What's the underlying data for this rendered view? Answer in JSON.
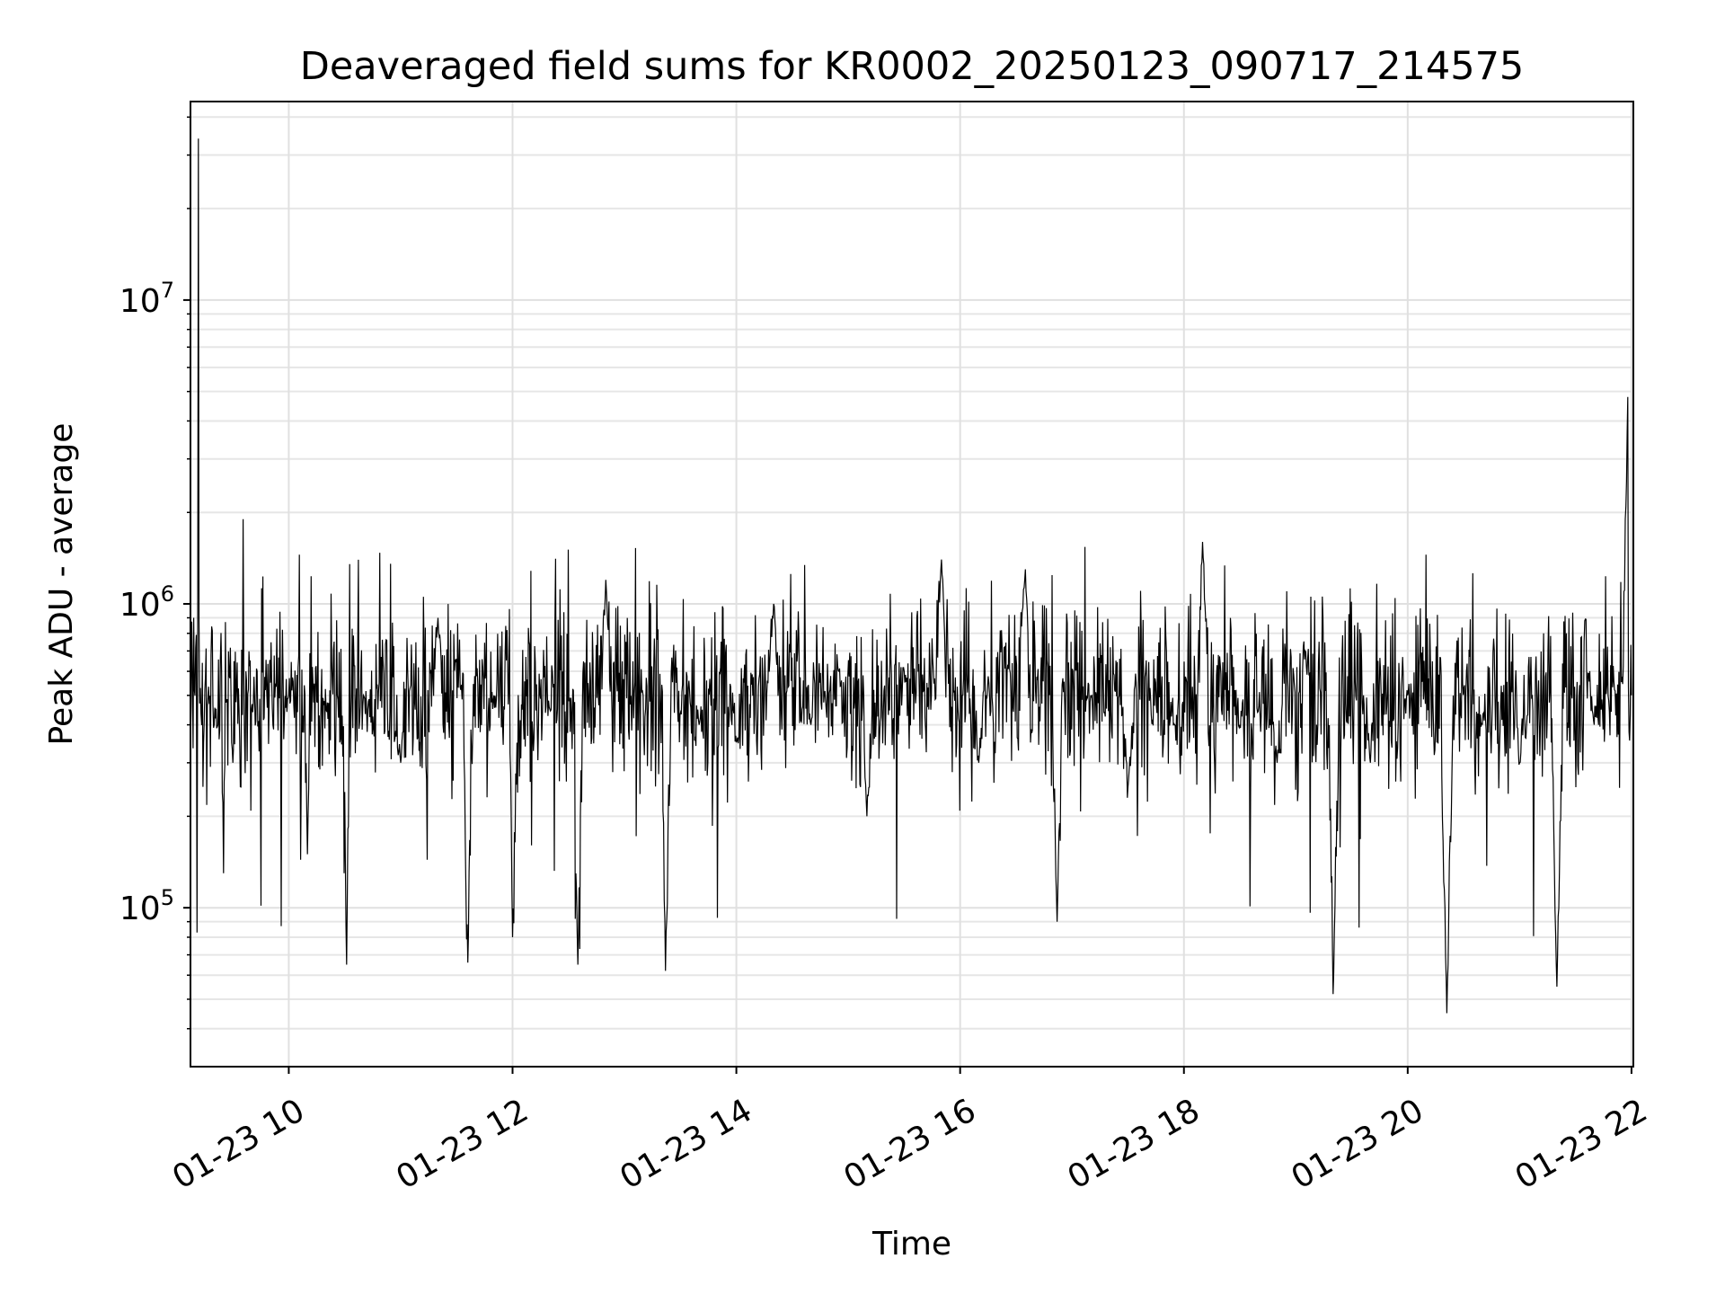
{
  "chart_data": {
    "type": "line",
    "title": "Deaveraged field sums for KR0002_20250123_090717_214575",
    "xlabel": "Time",
    "ylabel": "Peak ADU - average",
    "yscale": "log",
    "grid": true,
    "grid_minor": true,
    "line_color": "#000000",
    "xlim": [
      "2025-01-23 09:07:17",
      "2025-01-23 22:01:00"
    ],
    "ylim": [
      30000,
      45000000
    ],
    "x_ticks": [
      {
        "value": "2025-01-23 10:00",
        "label": "01-23 10"
      },
      {
        "value": "2025-01-23 12:00",
        "label": "01-23 12"
      },
      {
        "value": "2025-01-23 14:00",
        "label": "01-23 14"
      },
      {
        "value": "2025-01-23 16:00",
        "label": "01-23 16"
      },
      {
        "value": "2025-01-23 18:00",
        "label": "01-23 18"
      },
      {
        "value": "2025-01-23 20:00",
        "label": "01-23 20"
      },
      {
        "value": "2025-01-23 22:00",
        "label": "01-23 22"
      }
    ],
    "y_ticks": [
      {
        "value": 100000,
        "base": "10",
        "exponent": "5"
      },
      {
        "value": 1000000,
        "base": "10",
        "exponent": "6"
      },
      {
        "value": 10000000,
        "base": "10",
        "exponent": "7"
      }
    ],
    "series": [
      {
        "x": [
          "2025-01-23 09:07:17",
          "2025-01-23 09:09:00",
          "2025-01-23 09:11:30",
          "2025-01-23 09:14:00",
          "2025-01-23 09:20:00",
          "2025-01-23 09:25:00",
          "2025-01-23 09:30:00",
          "2025-01-23 09:34:00",
          "2025-01-23 09:35:30",
          "2025-01-23 09:37:00",
          "2025-01-23 09:40:00",
          "2025-01-23 10:00:00",
          "2025-01-23 10:10:00",
          "2025-01-23 10:20:00",
          "2025-01-23 10:31:00",
          "2025-01-23 10:40:00",
          "2025-01-23 11:00:00",
          "2025-01-23 11:20:00",
          "2025-01-23 11:36:00",
          "2025-01-23 11:50:00",
          "2025-01-23 12:00:00",
          "2025-01-23 12:20:00",
          "2025-01-23 12:35:00",
          "2025-01-23 12:50:00",
          "2025-01-23 13:10:00",
          "2025-01-23 13:22:00",
          "2025-01-23 13:40:00",
          "2025-01-23 14:00:00",
          "2025-01-23 14:20:00",
          "2025-01-23 14:40:00",
          "2025-01-23 14:55:00",
          "2025-01-23 15:10:00",
          "2025-01-23 15:30:00",
          "2025-01-23 15:50:00",
          "2025-01-23 16:10:00",
          "2025-01-23 16:35:00",
          "2025-01-23 16:52:00",
          "2025-01-23 17:10:00",
          "2025-01-23 17:30:00",
          "2025-01-23 17:55:00",
          "2025-01-23 18:10:00",
          "2025-01-23 18:30:00",
          "2025-01-23 18:50:00",
          "2025-01-23 19:05:00",
          "2025-01-23 19:20:00",
          "2025-01-23 19:40:00",
          "2025-01-23 20:00:00",
          "2025-01-23 20:21:00",
          "2025-01-23 20:40:00",
          "2025-01-23 21:00:00",
          "2025-01-23 21:20:00",
          "2025-01-23 21:40:00",
          "2025-01-23 21:58:00",
          "2025-01-23 22:00:00"
        ],
        "y": [
          330000,
          900000,
          34000000,
          250000,
          400000,
          130000,
          300000,
          250000,
          1900000,
          600000,
          450000,
          500000,
          150000,
          450000,
          65000,
          500000,
          300000,
          900000,
          66000,
          500000,
          80000,
          450000,
          65000,
          1200000,
          500000,
          62000,
          400000,
          350000,
          1000000,
          400000,
          600000,
          200000,
          600000,
          1400000,
          300000,
          1300000,
          90000,
          500000,
          250000,
          400000,
          1600000,
          400000,
          300000,
          700000,
          52000,
          300000,
          500000,
          45000,
          400000,
          300000,
          55000,
          400000,
          4800000,
          500000
        ]
      }
    ]
  }
}
